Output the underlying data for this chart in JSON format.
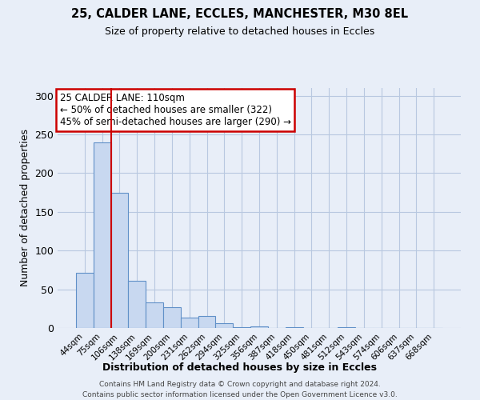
{
  "title1": "25, CALDER LANE, ECCLES, MANCHESTER, M30 8EL",
  "title2": "Size of property relative to detached houses in Eccles",
  "xlabel": "Distribution of detached houses by size in Eccles",
  "ylabel": "Number of detached properties",
  "bin_labels": [
    "44sqm",
    "75sqm",
    "106sqm",
    "138sqm",
    "169sqm",
    "200sqm",
    "231sqm",
    "262sqm",
    "294sqm",
    "325sqm",
    "356sqm",
    "387sqm",
    "418sqm",
    "450sqm",
    "481sqm",
    "512sqm",
    "543sqm",
    "574sqm",
    "606sqm",
    "637sqm",
    "668sqm"
  ],
  "bar_values": [
    71,
    240,
    175,
    61,
    33,
    27,
    13,
    16,
    6,
    1,
    2,
    0,
    1,
    0,
    0,
    1,
    0,
    0,
    0,
    0,
    0
  ],
  "bar_color": "#c8d8f0",
  "bar_edge_color": "#6090c8",
  "marker_line_color": "#cc0000",
  "marker_bar_index": 2,
  "annotation_title": "25 CALDER LANE: 110sqm",
  "annotation_line1": "← 50% of detached houses are smaller (322)",
  "annotation_line2": "45% of semi-detached houses are larger (290) →",
  "annotation_box_color": "#ffffff",
  "annotation_box_edge": "#cc0000",
  "ylim": [
    0,
    310
  ],
  "yticks": [
    0,
    50,
    100,
    150,
    200,
    250,
    300
  ],
  "footer1": "Contains HM Land Registry data © Crown copyright and database right 2024.",
  "footer2": "Contains public sector information licensed under the Open Government Licence v3.0.",
  "bg_color": "#e8eef8",
  "plot_bg_color": "#e8eef8"
}
